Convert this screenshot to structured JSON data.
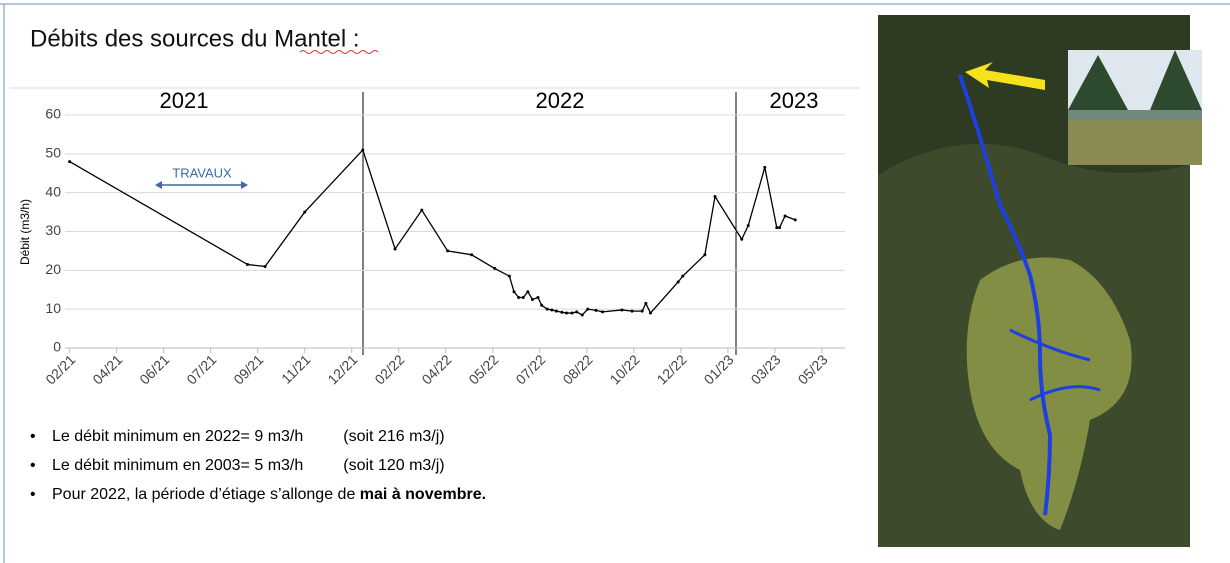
{
  "title": "Débits des sources du Mantel :",
  "chart_data": {
    "type": "line",
    "y_label": "Débit (m3/h)",
    "year_labels": [
      "2021",
      "2022",
      "2023"
    ],
    "annotation": "TRAVAUX",
    "x": [
      0,
      193,
      212,
      255,
      318,
      353,
      382,
      410,
      436,
      461,
      477,
      482,
      487,
      492,
      497,
      502,
      508,
      512,
      518,
      523,
      528,
      534,
      539,
      545,
      550,
      556,
      562,
      571,
      578,
      599,
      610,
      621,
      625,
      630,
      660,
      665,
      689,
      700,
      729,
      736,
      754,
      767,
      770,
      776,
      787
    ],
    "series": [
      {
        "color": "#000000",
        "values": [
          48,
          21.5,
          21,
          35,
          51,
          25.5,
          35.5,
          25,
          24,
          20.5,
          18.5,
          14.5,
          13,
          13,
          14.5,
          12.5,
          13,
          11,
          10,
          9.8,
          9.5,
          9.2,
          9,
          9,
          9.3,
          8.5,
          10,
          9.7,
          9.3,
          9.8,
          9.5,
          9.5,
          11.5,
          9,
          17,
          18.5,
          24,
          39,
          28,
          31.5,
          46.5,
          31,
          31,
          34,
          33
        ]
      }
    ],
    "xlim": [
      -5,
      841
    ],
    "xticks": [
      {
        "value": 0,
        "label": "02/21"
      },
      {
        "value": 51,
        "label": "04/21"
      },
      {
        "value": 102,
        "label": "06/21"
      },
      {
        "value": 153,
        "label": "07/21"
      },
      {
        "value": 204,
        "label": "09/21"
      },
      {
        "value": 255,
        "label": "11/21"
      },
      {
        "value": 306,
        "label": "12/21"
      },
      {
        "value": 357,
        "label": "02/22"
      },
      {
        "value": 408,
        "label": "04/22"
      },
      {
        "value": 459,
        "label": "05/22"
      },
      {
        "value": 510,
        "label": "07/22"
      },
      {
        "value": 561,
        "label": "08/22"
      },
      {
        "value": 612,
        "label": "10/22"
      },
      {
        "value": 663,
        "label": "12/22"
      },
      {
        "value": 714,
        "label": "01/23"
      },
      {
        "value": 765,
        "label": "03/23"
      },
      {
        "value": 816,
        "label": "05/23"
      }
    ],
    "ylim": [
      0,
      60
    ],
    "yticks": [
      0,
      10,
      20,
      30,
      40,
      50,
      60
    ],
    "grid": true
  },
  "bullets": [
    {
      "text": "Le débit minimum en 2022= 9 m3/h",
      "note": "(soit 216 m3/j)"
    },
    {
      "text": "Le débit minimum en 2003= 5 m3/h",
      "note": "(soit 120 m3/j)"
    },
    {
      "text": "Pour 2022, la période d’étiage s’allonge de",
      "bold": "mai à novembre."
    }
  ]
}
